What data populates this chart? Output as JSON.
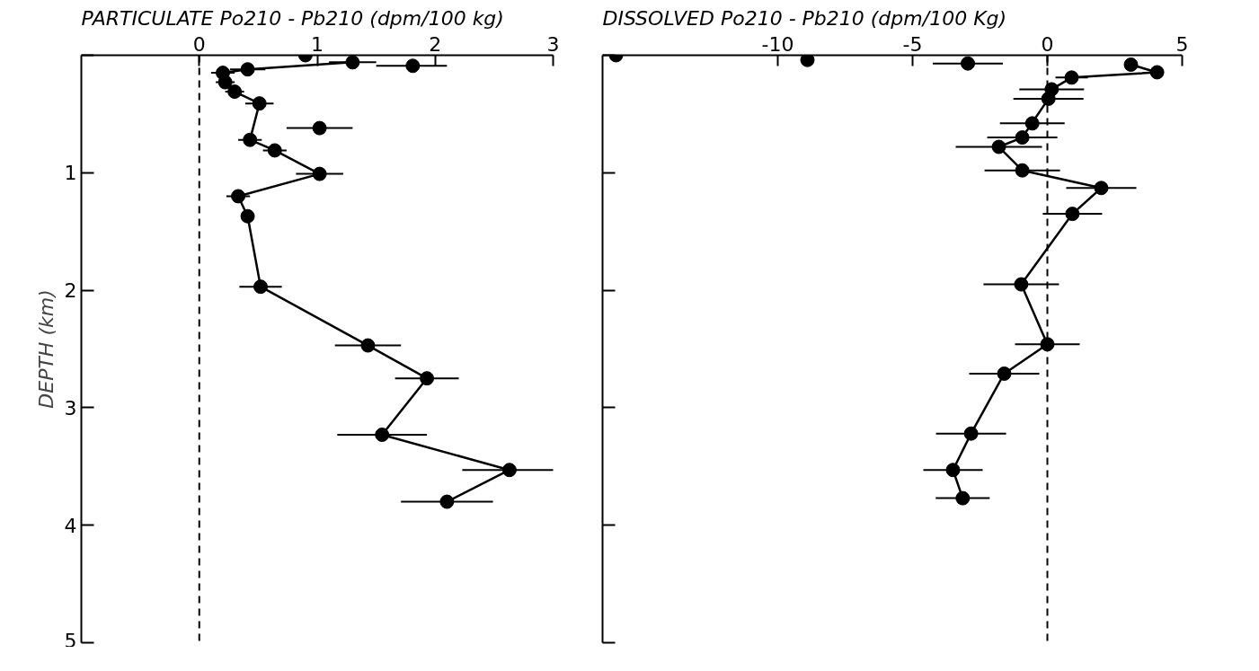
{
  "chart_data": [
    {
      "type": "line",
      "title": "PARTICULATE  Po210 - Pb210 (dpm/100 kg)",
      "ylabel": "DEPTH (km)",
      "xlim": [
        -1,
        3
      ],
      "xticks": [
        0,
        1,
        2,
        3
      ],
      "ylim": [
        5,
        0
      ],
      "yticks": [
        {
          "value": 0,
          "label": null
        },
        1,
        2,
        3,
        4,
        5
      ],
      "grid": false,
      "marker": "circle",
      "line_style": "solid",
      "series": [
        {
          "color": "#000000",
          "x": [
            1.3,
            0.41,
            0.2,
            0.22,
            0.3,
            0.51,
            0.43,
            0.64,
            1.02,
            0.33,
            0.41,
            0.52,
            1.43,
            1.93,
            1.55,
            2.63,
            2.1
          ],
          "values": [
            0.06,
            0.12,
            0.15,
            0.23,
            0.31,
            0.41,
            0.72,
            0.81,
            1.01,
            1.2,
            1.37,
            1.97,
            2.47,
            2.75,
            3.23,
            3.53,
            3.8
          ],
          "xerrors": [
            0.2,
            0.15,
            0.1,
            0.08,
            0.08,
            0.12,
            0.1,
            0.1,
            0.2,
            0.1,
            null,
            0.18,
            0.28,
            0.27,
            0.38,
            0.4,
            0.39
          ]
        },
        {
          "type": "scatter",
          "color": "#000000",
          "x": [
            0.9,
            1.81,
            1.02
          ],
          "values": [
            0.0,
            0.09,
            0.62
          ],
          "xerrors": [
            null,
            [
              1.5,
              2.1
            ],
            0.28
          ]
        }
      ],
      "ref_lines": [
        {
          "axis": "x",
          "value": 0,
          "label": null,
          "color": "#000000",
          "line_style": "dashed"
        }
      ]
    },
    {
      "type": "line",
      "title": "DISSOLVED  Po210 - Pb210 (dpm/100 Kg)",
      "xlim": [
        -16.5,
        5
      ],
      "xticks": [
        -10,
        -5,
        0,
        5
      ],
      "ylim": [
        5,
        0
      ],
      "yticks": [
        {
          "value": 0,
          "label": null
        },
        {
          "value": 1,
          "label": null
        },
        {
          "value": 2,
          "label": null
        },
        {
          "value": 3,
          "label": null
        },
        {
          "value": 4,
          "label": null
        },
        {
          "value": 5,
          "label": null
        }
      ],
      "tick_labels": "x",
      "grid": false,
      "marker": "circle",
      "line_style": "solid",
      "series": [
        {
          "color": "#000000",
          "x": [
            3.1,
            4.07,
            0.9,
            0.16,
            0.04,
            -0.93,
            -1.8,
            -0.93,
            2.0,
            0.93,
            -0.97,
            0.0,
            -1.6,
            -2.83,
            -3.5,
            -3.14
          ],
          "values": [
            0.08,
            0.145,
            0.19,
            0.29,
            0.37,
            0.7,
            0.78,
            0.98,
            1.13,
            1.35,
            1.95,
            2.46,
            2.71,
            3.22,
            3.53,
            3.77
          ],
          "xerrors": [
            null,
            null,
            0.6,
            1.2,
            1.3,
            1.3,
            1.6,
            1.4,
            1.3,
            1.1,
            1.4,
            1.2,
            1.3,
            1.3,
            1.1,
            1.0
          ]
        },
        {
          "type": "scatter",
          "color": "#000000",
          "x": [
            -16.0,
            -8.9,
            -2.95,
            -0.56
          ],
          "values": [
            0.0,
            0.04,
            0.07,
            0.58
          ],
          "xerrors": [
            null,
            null,
            1.3,
            1.2
          ]
        }
      ],
      "ref_lines": [
        {
          "axis": "x",
          "value": 0,
          "label": null,
          "color": "#000000",
          "line_style": "dashed"
        }
      ]
    }
  ]
}
